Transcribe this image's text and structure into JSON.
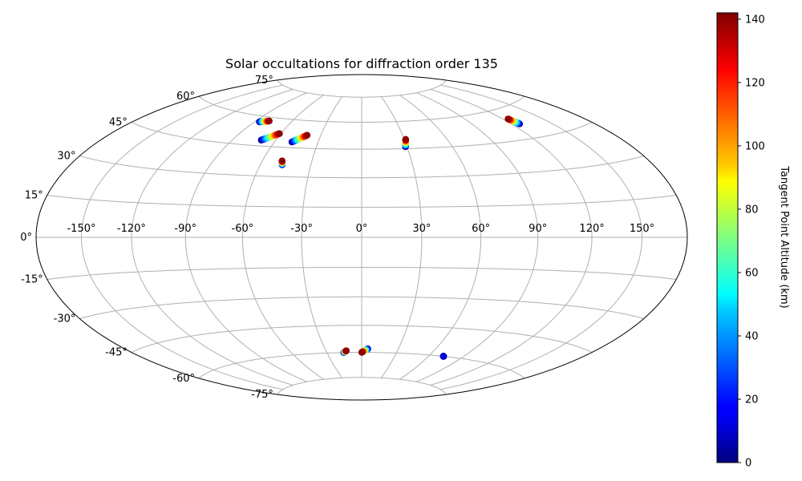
{
  "chart_data": {
    "type": "scatter",
    "projection": "hammer",
    "title": "Solar occultations for diffraction order 135",
    "grid": true,
    "lon_ticks": [
      -150,
      -120,
      -90,
      -60,
      -30,
      0,
      30,
      60,
      90,
      120,
      150
    ],
    "lon_tick_labels": [
      "-150°",
      "-120°",
      "-90°",
      "-60°",
      "-30°",
      "0°",
      "30°",
      "60°",
      "90°",
      "120°",
      "150°"
    ],
    "lat_ticks": [
      -75,
      -60,
      -45,
      -30,
      -15,
      0,
      15,
      30,
      45,
      60,
      75
    ],
    "lat_tick_labels": [
      "-75°",
      "-60°",
      "-45°",
      "-30°",
      "-15°",
      "0°",
      "15°",
      "30°",
      "45°",
      "60°",
      "75°"
    ],
    "colorbar": {
      "label": "Tangent Point Altitude (km)",
      "colormap": "jet",
      "range": [
        0,
        142
      ],
      "ticks": [
        0,
        20,
        40,
        60,
        80,
        100,
        120,
        140
      ],
      "tick_labels": [
        "0",
        "20",
        "40",
        "60",
        "80",
        "100",
        "120",
        "140"
      ],
      "placement": "right"
    },
    "tracks": [
      {
        "lon_start": -86,
        "lat_start": 57,
        "alt_start": 0,
        "lon_end": -79,
        "lat_end": 58,
        "alt_end": 140
      },
      {
        "lon_start": -70,
        "lat_start": 48,
        "alt_start": 0,
        "lon_end": -61,
        "lat_end": 52,
        "alt_end": 140
      },
      {
        "lon_start": -48,
        "lat_start": 48,
        "alt_start": 0,
        "lon_end": -40,
        "lat_end": 52,
        "alt_end": 140
      },
      {
        "lon_start": -47,
        "lat_start": 36,
        "alt_start": 0,
        "lon_end": -48,
        "lat_end": 38,
        "alt_end": 140
      },
      {
        "lon_start": 29,
        "lat_start": 46,
        "alt_start": 0,
        "lon_end": 31,
        "lat_end": 50,
        "alt_end": 140
      },
      {
        "lon_start": 126,
        "lat_start": 52,
        "alt_start": 0,
        "lon_end": 124,
        "lat_end": 55,
        "alt_end": 140
      },
      {
        "lon_start": -15.5,
        "lat_start": -60,
        "alt_start": 0,
        "lon_end": -13,
        "lat_end": -59,
        "alt_end": 140
      },
      {
        "lon_start": 5,
        "lat_start": -58,
        "alt_start": 0,
        "lon_end": 0,
        "lat_end": -60,
        "alt_end": 140
      },
      {
        "lon_start": 73,
        "lat_start": -60,
        "alt_start": 0,
        "lon_end": 73,
        "lat_end": -60,
        "alt_end": 12
      }
    ]
  }
}
